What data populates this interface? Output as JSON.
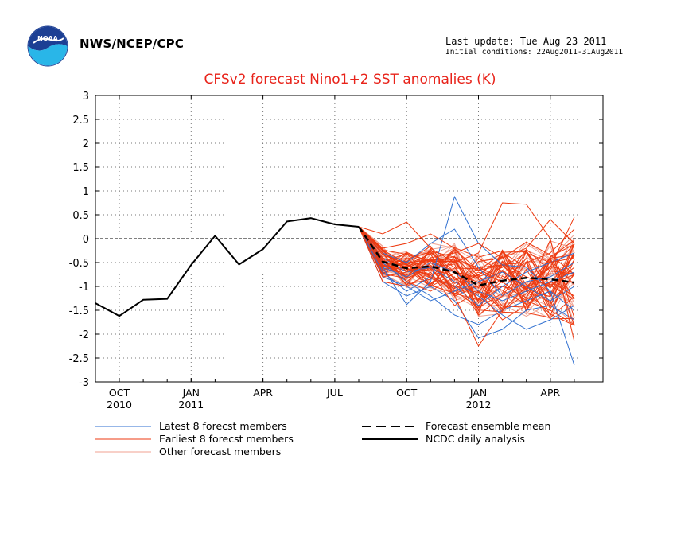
{
  "header": {
    "org": "NWS/NCEP/CPC",
    "last_update": "Last update: Tue Aug 23 2011",
    "initial_conditions": "Initial conditions: 22Aug2011-31Aug2011"
  },
  "colors": {
    "title": "#e8231a",
    "latest": "#2f6fd0",
    "earliest": "#ee3a10",
    "other": "#f0a090",
    "mean": "#000000",
    "observed": "#000000"
  },
  "chart_data": {
    "type": "line",
    "title": "CFSv2 forecast Nino1+2 SST anomalies (K)",
    "ylim": [
      -3,
      3
    ],
    "yticks": [
      "3",
      "2.5",
      "2",
      "1.5",
      "1",
      "0.5",
      "0",
      "-0.5",
      "-1",
      "-1.5",
      "-2",
      "-2.5",
      "-3"
    ],
    "xtick_labels": [
      {
        "month": "OCT",
        "year": "2010"
      },
      {
        "month": "JAN",
        "year": "2011"
      },
      {
        "month": "APR",
        "year": ""
      },
      {
        "month": "JUL",
        "year": ""
      },
      {
        "month": "OCT",
        "year": ""
      },
      {
        "month": "JAN",
        "year": "2012"
      },
      {
        "month": "APR",
        "year": ""
      }
    ],
    "grid": "dotted",
    "zero_line": "dashed",
    "observed": {
      "name": "NCDC daily analysis",
      "months": [
        "Sep 2010",
        "Oct 2010",
        "Nov 2010",
        "Dec 2010",
        "Jan 2011",
        "Feb 2011",
        "Mar 2011",
        "Apr 2011",
        "May 2011",
        "Jun 2011",
        "Jul 2011",
        "Aug 2011"
      ],
      "values": [
        -1.35,
        -1.62,
        -1.28,
        -1.26,
        -0.55,
        0.06,
        -0.54,
        -0.22,
        0.36,
        0.43,
        0.3,
        0.25
      ]
    },
    "ensemble_mean": {
      "name": "Forecast ensemble mean",
      "months": [
        "Aug 2011",
        "Sep 2011",
        "Oct 2011",
        "Nov 2011",
        "Dec 2011",
        "Jan 2012",
        "Feb 2012",
        "Mar 2012",
        "Apr 2012",
        "May 2012"
      ],
      "values": [
        0.25,
        -0.48,
        -0.62,
        -0.58,
        -0.7,
        -0.98,
        -0.88,
        -0.82,
        -0.85,
        -0.92
      ]
    },
    "member_months": [
      "Aug 2011",
      "Sep 2011",
      "Oct 2011",
      "Nov 2011",
      "Dec 2011",
      "Jan 2012",
      "Feb 2012",
      "Mar 2012",
      "Apr 2012",
      "May 2012"
    ],
    "latest_members": [
      {
        "values": [
          0.25,
          -0.6,
          -1.38,
          -0.9,
          0.88,
          -0.1,
          -0.55,
          -0.6,
          -1.1,
          -2.65
        ]
      },
      {
        "values": [
          0.25,
          -0.9,
          -1.2,
          -1.0,
          -1.3,
          -2.08,
          -1.9,
          -1.5,
          -1.4,
          -1.7
        ]
      },
      {
        "values": [
          0.25,
          -0.3,
          -0.5,
          -0.1,
          0.2,
          -0.6,
          -1.2,
          -0.9,
          -0.8,
          -0.5
        ]
      },
      {
        "values": [
          0.25,
          -0.5,
          -0.9,
          -1.2,
          -1.6,
          -1.8,
          -1.5,
          -1.3,
          -1.1,
          -1.5
        ]
      },
      {
        "values": [
          0.25,
          -0.7,
          -1.1,
          -0.8,
          -1.0,
          -1.4,
          -1.0,
          -0.7,
          -0.5,
          -0.3
        ]
      },
      {
        "values": [
          0.25,
          -0.4,
          -0.7,
          -0.6,
          -0.9,
          -1.2,
          -1.6,
          -1.9,
          -1.7,
          -1.4
        ]
      },
      {
        "values": [
          0.25,
          -0.8,
          -1.0,
          -1.3,
          -1.1,
          -0.9,
          -0.7,
          -1.0,
          -1.3,
          -1.0
        ]
      },
      {
        "values": [
          0.25,
          -0.6,
          -0.8,
          -0.5,
          -0.7,
          -1.1,
          -1.3,
          -1.1,
          -0.9,
          -0.7
        ]
      }
    ],
    "earliest_members": [
      {
        "values": [
          0.25,
          0.1,
          0.35,
          -0.2,
          -0.5,
          -0.3,
          0.75,
          0.72,
          0.0,
          -2.15
        ]
      },
      {
        "values": [
          0.25,
          -0.5,
          -0.3,
          -0.6,
          -1.2,
          -2.25,
          -1.5,
          -1.0,
          -0.6,
          0.45
        ]
      },
      {
        "values": [
          0.25,
          -0.8,
          -0.7,
          -0.4,
          -0.3,
          -0.1,
          -0.4,
          -0.2,
          0.4,
          -0.1
        ]
      },
      {
        "values": [
          0.25,
          -0.3,
          -0.9,
          -1.1,
          -0.8,
          -1.6,
          -1.2,
          -0.5,
          -0.3,
          0.2
        ]
      },
      {
        "values": [
          0.25,
          -0.6,
          -0.4,
          -0.8,
          -1.0,
          -0.7,
          -0.9,
          -1.3,
          -1.5,
          -1.8
        ]
      },
      {
        "values": [
          0.25,
          -0.2,
          -0.1,
          0.1,
          -0.2,
          -0.8,
          -0.6,
          -0.3,
          -0.5,
          -0.4
        ]
      },
      {
        "values": [
          0.25,
          -0.9,
          -1.0,
          -0.7,
          -1.4,
          -1.1,
          -1.7,
          -1.4,
          -0.9,
          -1.2
        ]
      },
      {
        "values": [
          0.25,
          -0.4,
          -0.6,
          -0.3,
          -0.6,
          -1.3,
          -0.5,
          -0.8,
          -1.0,
          -0.6
        ]
      }
    ],
    "legend": {
      "latest": "Latest 8 forecst members",
      "earliest": "Earliest 8 forecst members",
      "other": "Other forecast members",
      "mean": "Forecast ensemble mean",
      "observed": "NCDC daily analysis"
    }
  }
}
